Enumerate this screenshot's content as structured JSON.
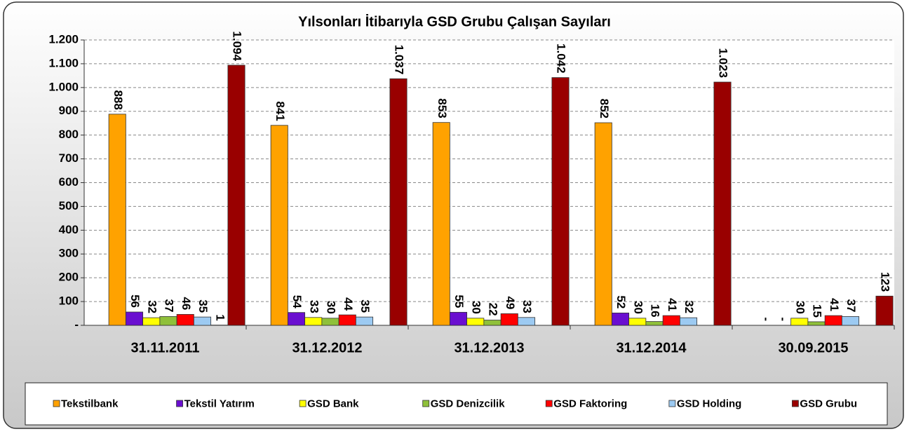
{
  "chart_data": {
    "type": "bar",
    "title": "Yılsonları İtibarıyla GSD Grubu Çalışan Sayıları",
    "categories": [
      "31.11.2011",
      "31.12.2012",
      "31.12.2013",
      "31.12.2014",
      "30.09.2015"
    ],
    "series": [
      {
        "name": "Tekstilbank",
        "color": "#ffa200",
        "values": [
          888,
          841,
          853,
          852,
          0
        ],
        "value_labels": [
          null,
          null,
          null,
          null,
          "-"
        ]
      },
      {
        "name": "Tekstil Yatırım",
        "color": "#6a0fd0",
        "values": [
          56,
          54,
          55,
          52,
          0
        ],
        "value_labels": [
          null,
          null,
          null,
          null,
          "-"
        ]
      },
      {
        "name": "GSD Bank",
        "color": "#ffff00",
        "values": [
          32,
          33,
          30,
          30,
          30
        ]
      },
      {
        "name": "GSD Denizcilik",
        "color": "#8fc03a",
        "values": [
          37,
          30,
          22,
          16,
          15
        ]
      },
      {
        "name": "GSD Faktoring",
        "color": "#ff0000",
        "values": [
          46,
          44,
          49,
          41,
          41
        ]
      },
      {
        "name": "GSD Holding",
        "color": "#9ccaf2",
        "values": [
          35,
          35,
          33,
          32,
          37
        ]
      },
      {
        "name": null,
        "color": "#666699",
        "values": [
          1,
          null,
          null,
          null,
          null
        ]
      },
      {
        "name": "GSD Grubu",
        "color": "#990000",
        "values": [
          1094,
          1037,
          1042,
          1023,
          123
        ],
        "value_labels": [
          "1.094",
          "1.037",
          "1.042",
          "1.023",
          null
        ]
      }
    ],
    "ylim": [
      0,
      1200
    ],
    "yticks": [
      {
        "value": 0,
        "label": "-"
      },
      100,
      200,
      300,
      400,
      500,
      600,
      700,
      800,
      900,
      {
        "value": 1000,
        "label": "1.000"
      },
      {
        "value": 1100,
        "label": "1.100"
      },
      {
        "value": 1200,
        "label": "1.200"
      }
    ],
    "grid": true,
    "legend": "bottom"
  }
}
